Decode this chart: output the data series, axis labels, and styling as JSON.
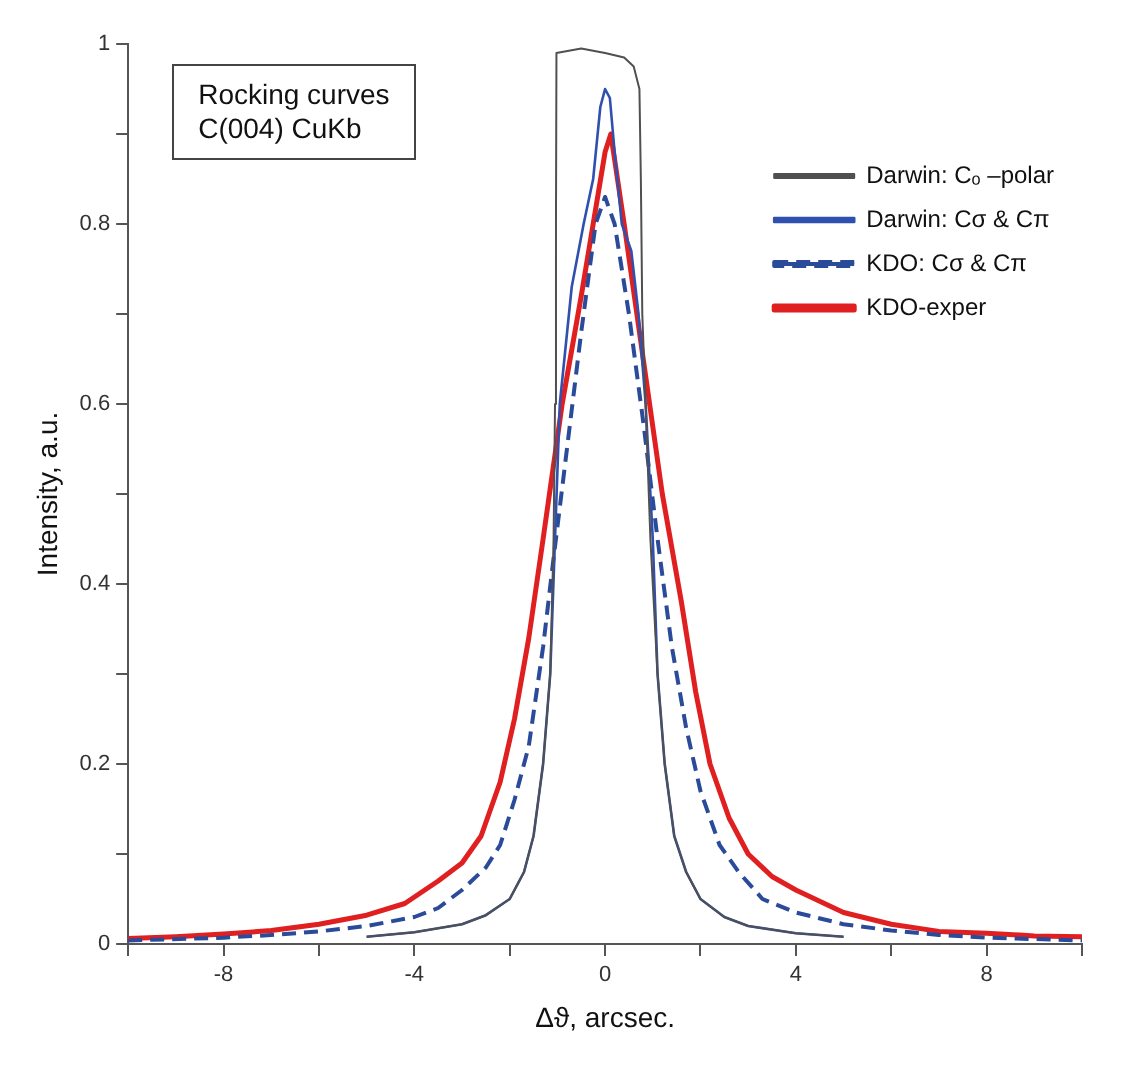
{
  "chart_data": {
    "type": "line",
    "xlabel": "Δϑ, arcsec.",
    "ylabel": "Intensity, a.u.",
    "annotations": [
      "Rocking curves",
      "C(004) CuKb"
    ],
    "xlim": [
      -10,
      10
    ],
    "xticks": [
      {
        "value": -10,
        "label": null
      },
      -8,
      {
        "value": -6,
        "label": null
      },
      -4,
      {
        "value": -2,
        "label": null
      },
      0,
      {
        "value": 2,
        "label": null
      },
      4,
      {
        "value": 6,
        "label": null
      },
      8,
      {
        "value": 10,
        "label": null
      }
    ],
    "ylim": [
      0,
      1
    ],
    "yticks": [
      0,
      {
        "value": 0.1,
        "label": null
      },
      0.2,
      {
        "value": 0.3,
        "label": null
      },
      0.4,
      {
        "value": 0.5,
        "label": null
      },
      0.6,
      {
        "value": 0.7,
        "label": null
      },
      0.8,
      {
        "value": 0.9,
        "label": null
      },
      1
    ],
    "grid": false,
    "legend": "top right",
    "marker": "none",
    "series": [
      {
        "name": "Darwin: Cₒ –polar",
        "color": "#505050",
        "line_style": "solid",
        "x": [
          -5,
          -4,
          -3,
          -2.5,
          -2,
          -1.7,
          -1.5,
          -1.3,
          -1.15,
          -1.08,
          -1.05,
          -1.03,
          -1.02,
          -0.5,
          0,
          0.4,
          0.6,
          0.72,
          0.75,
          0.78,
          0.85,
          0.95,
          1.1,
          1.25,
          1.45,
          1.7,
          2,
          2.5,
          3,
          4,
          5
        ],
        "values": [
          0.008,
          0.013,
          0.022,
          0.032,
          0.05,
          0.08,
          0.12,
          0.2,
          0.3,
          0.45,
          0.6,
          0.8,
          0.99,
          0.995,
          0.99,
          0.985,
          0.975,
          0.95,
          0.85,
          0.7,
          0.6,
          0.45,
          0.3,
          0.2,
          0.12,
          0.08,
          0.05,
          0.03,
          0.02,
          0.012,
          0.008
        ]
      },
      {
        "name": "Darwin: Cσ & Cπ",
        "color": "#3050b0",
        "line_style": "solid",
        "x": [
          -5,
          -4,
          -3,
          -2.5,
          -2,
          -1.7,
          -1.5,
          -1.3,
          -1.15,
          -1.05,
          -0.95,
          -0.7,
          -0.45,
          -0.25,
          -0.1,
          0,
          0.1,
          0.2,
          0.35,
          0.55,
          0.7,
          0.85,
          1,
          1.1,
          1.25,
          1.45,
          1.7,
          2,
          2.5,
          3,
          4,
          5
        ],
        "values": [
          0.008,
          0.013,
          0.022,
          0.032,
          0.05,
          0.08,
          0.12,
          0.2,
          0.3,
          0.45,
          0.6,
          0.73,
          0.8,
          0.85,
          0.93,
          0.95,
          0.94,
          0.88,
          0.8,
          0.77,
          0.7,
          0.6,
          0.45,
          0.3,
          0.2,
          0.12,
          0.08,
          0.05,
          0.03,
          0.02,
          0.012,
          0.008
        ]
      },
      {
        "name": "KDO: Cσ & Cπ",
        "color": "#2a4a9a",
        "line_style": "dashed",
        "x": [
          -10,
          -8,
          -7,
          -6,
          -5,
          -4,
          -3.5,
          -3,
          -2.5,
          -2.2,
          -1.9,
          -1.6,
          -1.3,
          -1.1,
          -0.8,
          -0.5,
          -0.2,
          0,
          0.2,
          0.5,
          0.8,
          1.1,
          1.4,
          1.7,
          2,
          2.4,
          2.8,
          3.3,
          4,
          5,
          6,
          7,
          8,
          10
        ],
        "values": [
          0.004,
          0.007,
          0.01,
          0.014,
          0.02,
          0.03,
          0.04,
          0.06,
          0.085,
          0.11,
          0.16,
          0.22,
          0.33,
          0.42,
          0.55,
          0.68,
          0.8,
          0.83,
          0.8,
          0.7,
          0.58,
          0.45,
          0.33,
          0.24,
          0.17,
          0.11,
          0.08,
          0.05,
          0.035,
          0.022,
          0.015,
          0.01,
          0.007,
          0.004
        ]
      },
      {
        "name": "KDO-exper",
        "color": "#e02020",
        "line_style": "solid",
        "x": [
          -10,
          -9,
          -8,
          -7,
          -6,
          -5,
          -4.2,
          -3.5,
          -3,
          -2.6,
          -2.2,
          -1.9,
          -1.6,
          -1.3,
          -0.9,
          -0.5,
          0,
          0.12,
          0.4,
          0.8,
          1.2,
          1.6,
          1.9,
          2.2,
          2.6,
          3,
          3.5,
          4,
          5,
          6,
          7,
          8,
          9,
          10
        ],
        "values": [
          0.006,
          0.008,
          0.011,
          0.015,
          0.022,
          0.032,
          0.045,
          0.07,
          0.09,
          0.12,
          0.18,
          0.25,
          0.34,
          0.45,
          0.6,
          0.72,
          0.88,
          0.9,
          0.8,
          0.65,
          0.5,
          0.38,
          0.28,
          0.2,
          0.14,
          0.1,
          0.075,
          0.06,
          0.035,
          0.022,
          0.014,
          0.012,
          0.009,
          0.008
        ]
      }
    ]
  }
}
